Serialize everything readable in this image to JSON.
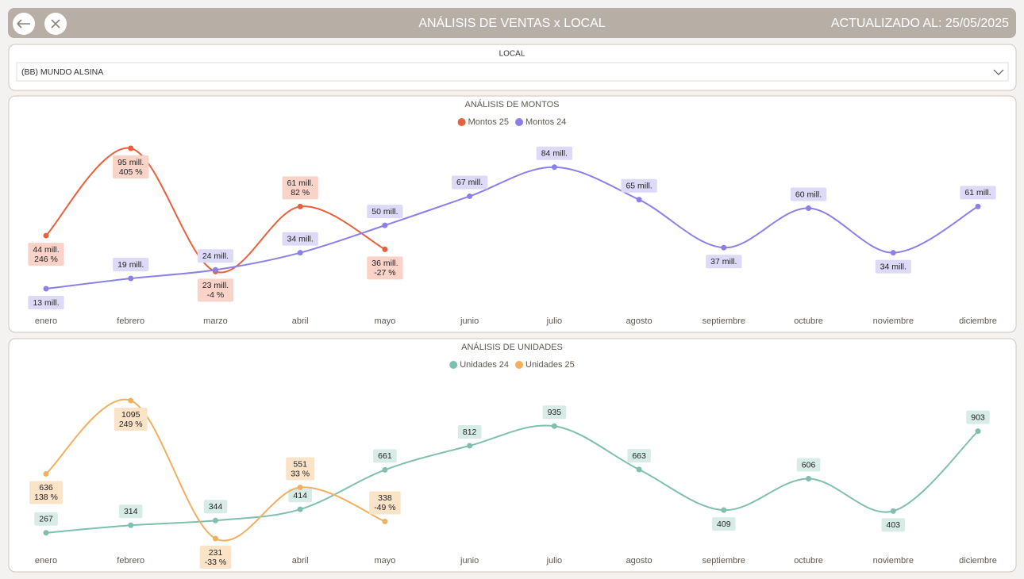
{
  "header": {
    "title": "ANÁLISIS DE VENTAS x LOCAL",
    "updated": "ACTUALIZADO AL: 25/05/2025"
  },
  "filter": {
    "label": "LOCAL",
    "value": "(BB) MUNDO ALSINA"
  },
  "chart_data": [
    {
      "type": "line",
      "title": "ANÁLISIS DE MONTOS",
      "categories": [
        "enero",
        "febrero",
        "marzo",
        "abril",
        "mayo",
        "junio",
        "julio",
        "agosto",
        "septiembre",
        "octubre",
        "noviembre",
        "diciembre"
      ],
      "series": [
        {
          "name": "Montos 25",
          "color": "#e8603c",
          "label_color": "#f9d3c8",
          "values": [
            44,
            95,
            23,
            61,
            36,
            null,
            null,
            null,
            null,
            null,
            null,
            null
          ],
          "value_labels": [
            "44 mill.",
            "95 mill.",
            "23 mill.",
            "61 mill.",
            "36 mill.",
            null,
            null,
            null,
            null,
            null,
            null,
            null
          ],
          "change_labels": [
            "246 %",
            "405 %",
            "-4 %",
            "82 %",
            "-27 %",
            null,
            null,
            null,
            null,
            null,
            null,
            null
          ]
        },
        {
          "name": "Montos 24",
          "color": "#8b80e6",
          "label_color": "#dcdaf7",
          "values": [
            13,
            19,
            24,
            34,
            50,
            67,
            84,
            65,
            37,
            60,
            34,
            61
          ],
          "value_labels": [
            "13 mill.",
            "19 mill.",
            "24 mill.",
            "34 mill.",
            "50 mill.",
            "67 mill.",
            "84 mill.",
            "65 mill.",
            "37 mill.",
            "60 mill.",
            "34 mill.",
            "61 mill."
          ]
        }
      ]
    },
    {
      "type": "line",
      "title": "ANÁLISIS DE UNIDADES",
      "categories": [
        "enero",
        "febrero",
        "marzo",
        "abril",
        "mayo",
        "junio",
        "julio",
        "agosto",
        "septiembre",
        "octubre",
        "noviembre",
        "diciembre"
      ],
      "series": [
        {
          "name": "Unidades 24",
          "color": "#7fbfb0",
          "label_color": "#d8ece7",
          "values": [
            267,
            314,
            344,
            414,
            661,
            812,
            935,
            663,
            409,
            606,
            403,
            903
          ]
        },
        {
          "name": "Unidades 25",
          "color": "#f0b060",
          "label_color": "#fbe3c8",
          "values": [
            636,
            1095,
            231,
            551,
            338,
            null,
            null,
            null,
            null,
            null,
            null,
            null
          ],
          "change_labels": [
            "138 %",
            "249 %",
            "-33 %",
            "33 %",
            "-49 %",
            null,
            null,
            null,
            null,
            null,
            null,
            null
          ]
        }
      ]
    }
  ]
}
